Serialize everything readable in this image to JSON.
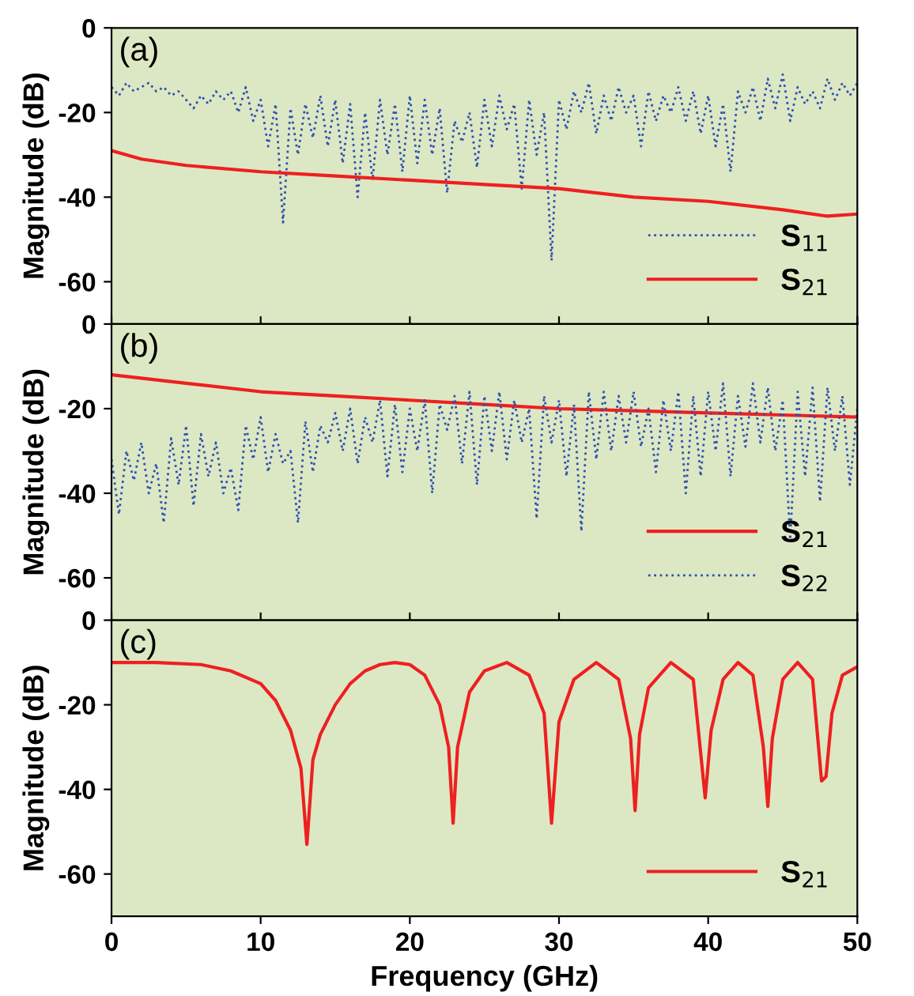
{
  "chart_data": [
    {
      "type": "line",
      "ylabel": "Magnitude (dB)",
      "annotations": [
        "(a)"
      ],
      "xlim": [
        0,
        50
      ],
      "xticks": [
        0,
        10,
        20,
        30,
        40,
        50
      ],
      "ylim": [
        -70,
        0
      ],
      "yticks": [
        0,
        -20,
        -40,
        -60
      ],
      "tick_labels": "y",
      "legend": "bottom right",
      "series": [
        {
          "name": "S$_{11}$",
          "color": "#3050b0",
          "line_style": "dotted",
          "x": [
            0,
            0.5,
            1,
            1.5,
            2,
            2.5,
            3,
            3.5,
            4,
            4.5,
            5,
            5.5,
            6,
            6.5,
            7,
            7.5,
            8,
            8.5,
            9,
            9.5,
            10,
            10.5,
            11,
            11.5,
            12,
            12.5,
            13,
            13.5,
            14,
            14.5,
            15,
            15.5,
            16,
            16.5,
            17,
            17.5,
            18,
            18.5,
            19,
            19.5,
            20,
            20.5,
            21,
            21.5,
            22,
            22.5,
            23,
            23.5,
            24,
            24.5,
            25,
            25.5,
            26,
            26.5,
            27,
            27.5,
            28,
            28.5,
            29,
            29.5,
            30,
            30.5,
            31,
            31.5,
            32,
            32.5,
            33,
            33.5,
            34,
            34.5,
            35,
            35.5,
            36,
            36.5,
            37,
            37.5,
            38,
            38.5,
            39,
            39.5,
            40,
            40.5,
            41,
            41.5,
            42,
            42.5,
            43,
            43.5,
            44,
            44.5,
            45,
            45.5,
            46,
            46.5,
            47,
            47.5,
            48,
            48.5,
            49,
            49.5,
            50
          ],
          "values": [
            -14,
            -16,
            -13,
            -15,
            -14,
            -13,
            -15,
            -14,
            -16,
            -15,
            -17,
            -19,
            -16,
            -18,
            -15,
            -17,
            -15,
            -20,
            -14,
            -22,
            -17,
            -28,
            -18,
            -46,
            -19,
            -30,
            -18,
            -26,
            -16,
            -28,
            -17,
            -32,
            -18,
            -40,
            -20,
            -36,
            -17,
            -30,
            -18,
            -34,
            -16,
            -32,
            -17,
            -30,
            -19,
            -39,
            -22,
            -27,
            -20,
            -33,
            -17,
            -28,
            -16,
            -24,
            -18,
            -38,
            -17,
            -30,
            -20,
            -55,
            -17,
            -24,
            -15,
            -20,
            -13,
            -25,
            -16,
            -22,
            -14,
            -20,
            -16,
            -28,
            -15,
            -22,
            -16,
            -20,
            -14,
            -22,
            -15,
            -25,
            -16,
            -28,
            -18,
            -34,
            -15,
            -20,
            -14,
            -22,
            -12,
            -19,
            -11,
            -22,
            -14,
            -18,
            -15,
            -19,
            -12,
            -17,
            -13,
            -16,
            -13
          ]
        },
        {
          "name": "S$_{21}$",
          "color": "#ee2020",
          "line_style": "solid",
          "x": [
            0,
            2,
            5,
            10,
            15,
            20,
            25,
            30,
            35,
            40,
            45,
            48,
            50
          ],
          "values": [
            -29,
            -31,
            -32.5,
            -34,
            -35,
            -36,
            -37,
            -38,
            -40,
            -41,
            -43,
            -44.5,
            -44
          ]
        }
      ]
    },
    {
      "type": "line",
      "ylabel": "Magnitude (dB)",
      "annotations": [
        "(b)"
      ],
      "xlim": [
        0,
        50
      ],
      "xticks": [
        0,
        10,
        20,
        30,
        40,
        50
      ],
      "ylim": [
        -70,
        0
      ],
      "yticks": [
        0,
        -20,
        -40,
        -60
      ],
      "tick_labels": "y",
      "legend": "bottom right",
      "series": [
        {
          "name": "S$_{21}$",
          "color": "#ee2020",
          "line_style": "solid",
          "x": [
            0,
            5,
            10,
            15,
            20,
            25,
            30,
            35,
            40,
            45,
            50
          ],
          "values": [
            -12,
            -14,
            -16,
            -17,
            -18,
            -19,
            -20,
            -20.5,
            -21,
            -21.5,
            -22
          ]
        },
        {
          "name": "S$_{22}$",
          "color": "#3050b0",
          "line_style": "dotted",
          "x": [
            0,
            0.5,
            1,
            1.5,
            2,
            2.5,
            3,
            3.5,
            4,
            4.5,
            5,
            5.5,
            6,
            6.5,
            7,
            7.5,
            8,
            8.5,
            9,
            9.5,
            10,
            10.5,
            11,
            11.5,
            12,
            12.5,
            13,
            13.5,
            14,
            14.5,
            15,
            15.5,
            16,
            16.5,
            17,
            17.5,
            18,
            18.5,
            19,
            19.5,
            20,
            20.5,
            21,
            21.5,
            22,
            22.5,
            23,
            23.5,
            24,
            24.5,
            25,
            25.5,
            26,
            26.5,
            27,
            27.5,
            28,
            28.5,
            29,
            29.5,
            30,
            30.5,
            31,
            31.5,
            32,
            32.5,
            33,
            33.5,
            34,
            34.5,
            35,
            35.5,
            36,
            36.5,
            37,
            37.5,
            38,
            38.5,
            39,
            39.5,
            40,
            40.5,
            41,
            41.5,
            42,
            42.5,
            43,
            43.5,
            44,
            44.5,
            45,
            45.5,
            46,
            46.5,
            47,
            47.5,
            48,
            48.5,
            49,
            49.5,
            50
          ],
          "values": [
            -32,
            -45,
            -30,
            -37,
            -28,
            -40,
            -33,
            -47,
            -27,
            -38,
            -24,
            -43,
            -26,
            -36,
            -28,
            -40,
            -34,
            -44,
            -24,
            -32,
            -22,
            -35,
            -26,
            -33,
            -30,
            -47,
            -23,
            -35,
            -24,
            -28,
            -21,
            -30,
            -20,
            -33,
            -22,
            -28,
            -18,
            -36,
            -19,
            -35,
            -20,
            -30,
            -18,
            -40,
            -19,
            -25,
            -17,
            -33,
            -16,
            -38,
            -17,
            -30,
            -16,
            -32,
            -18,
            -28,
            -20,
            -46,
            -17,
            -28,
            -18,
            -36,
            -19,
            -49,
            -16,
            -32,
            -16,
            -30,
            -17,
            -28,
            -16,
            -29,
            -20,
            -35,
            -18,
            -30,
            -16,
            -40,
            -17,
            -36,
            -16,
            -30,
            -14,
            -36,
            -17,
            -29,
            -14,
            -28,
            -15,
            -30,
            -18,
            -51,
            -16,
            -36,
            -15,
            -42,
            -15,
            -30,
            -17,
            -38,
            -20
          ]
        }
      ]
    },
    {
      "type": "line",
      "ylabel": "Magnitude (dB)",
      "xlabel": "Frequency (GHz)",
      "annotations": [
        "(c)"
      ],
      "xlim": [
        0,
        50
      ],
      "xticks": [
        0,
        10,
        20,
        30,
        40,
        50
      ],
      "ylim": [
        -70,
        0
      ],
      "yticks": [
        0,
        -20,
        -40,
        -60
      ],
      "legend": "bottom right",
      "series": [
        {
          "name": "S$_{21}$",
          "color": "#ee2020",
          "line_style": "solid",
          "x": [
            0,
            3,
            6,
            8,
            10,
            11,
            12,
            12.7,
            13.1,
            13.5,
            14,
            15,
            16,
            17,
            18,
            19,
            20,
            21,
            22,
            22.6,
            22.9,
            23.2,
            24,
            25,
            26.5,
            28,
            29,
            29.5,
            30,
            31,
            32.5,
            34,
            34.8,
            35.1,
            35.4,
            36,
            37.5,
            39,
            39.8,
            40.2,
            41,
            42,
            43,
            43.7,
            44,
            44.3,
            45,
            46,
            47,
            47.6,
            47.9,
            48.3,
            49,
            50
          ],
          "values": [
            -10,
            -10,
            -10.5,
            -12,
            -15,
            -19,
            -26,
            -35,
            -53,
            -33,
            -27,
            -20,
            -15,
            -12,
            -10.5,
            -10,
            -10.5,
            -13,
            -20,
            -30,
            -48,
            -30,
            -17,
            -12,
            -10,
            -13,
            -22,
            -48,
            -24,
            -14,
            -10,
            -14,
            -28,
            -45,
            -27,
            -16,
            -10,
            -14,
            -42,
            -26,
            -14,
            -10,
            -13,
            -30,
            -44,
            -28,
            -14,
            -10,
            -14,
            -38,
            -37,
            -22,
            -13,
            -11
          ]
        }
      ]
    }
  ]
}
